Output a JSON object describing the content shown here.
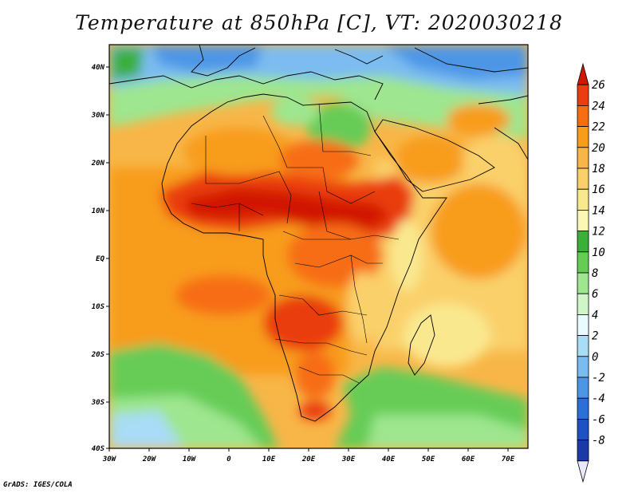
{
  "title": "Temperature at 850hPa [C], VT: 2020030218",
  "credit": "GrADS: IGES/COLA",
  "map": {
    "region": "Africa",
    "variable": "Temperature at 850hPa",
    "units": "C",
    "valid_time": "2020030218",
    "lon_range": [
      -30,
      75
    ],
    "lat_range": [
      -40,
      45
    ],
    "lon_ticks": [
      "30W",
      "20W",
      "10W",
      "0",
      "10E",
      "20E",
      "30E",
      "40E",
      "50E",
      "60E",
      "70E"
    ],
    "lat_ticks": [
      "40N",
      "30N",
      "20N",
      "10N",
      "EQ",
      "10S",
      "20S",
      "30S",
      "40S"
    ]
  },
  "colorbar": {
    "labels": [
      "26",
      "24",
      "22",
      "20",
      "18",
      "16",
      "14",
      "12",
      "10",
      "8",
      "6",
      "4",
      "2",
      "0",
      "-2",
      "-4",
      "-6",
      "-8"
    ],
    "colors": [
      "#d11800",
      "#ea3e10",
      "#f76d12",
      "#f89c1c",
      "#f8b648",
      "#fad06a",
      "#fae88f",
      "#fbf7b5",
      "#3aaf3a",
      "#66cc56",
      "#9ee68f",
      "#d0f5c7",
      "#e8fbff",
      "#a9dcf6",
      "#7bbcf0",
      "#4d96e6",
      "#2c6fd7",
      "#1e52c4",
      "#1a3aa8",
      "#121e7f"
    ]
  }
}
